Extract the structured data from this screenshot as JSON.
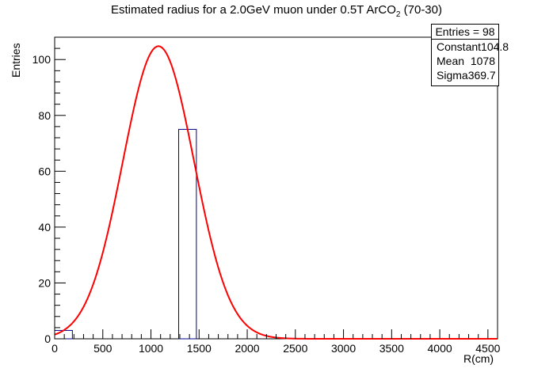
{
  "title": {
    "main": "Estimated radius for a 2.0GeV muon under 0.5T ArCO",
    "sub": "2",
    "tail": " (70-30)"
  },
  "axes": {
    "xlabel": "R(cm)",
    "ylabel": "Entries"
  },
  "stats": {
    "entries_label": "Entries = 98",
    "rows": [
      {
        "label": "Constant",
        "value": "104.8"
      },
      {
        "label": "Mean",
        "value": "1078"
      },
      {
        "label": "Sigma",
        "value": "369.7"
      }
    ]
  },
  "colors": {
    "histogram": "#00008b",
    "fit": "#ff0000",
    "axis": "#000000"
  },
  "chart_data": {
    "type": "bar",
    "title": "Estimated radius for a 2.0GeV muon under 0.5T ArCO2 (70-30)",
    "xlabel": "R(cm)",
    "ylabel": "Entries",
    "xlim": [
      0,
      4600
    ],
    "ylim": [
      0,
      108
    ],
    "xticks": [
      0,
      500,
      1000,
      1500,
      2000,
      2500,
      3000,
      3500,
      4000,
      4500
    ],
    "yticks": [
      0,
      20,
      40,
      60,
      80,
      100
    ],
    "bins": [
      {
        "x0": 0,
        "x1": 184,
        "count": 3
      },
      {
        "x0": 1288,
        "x1": 1472,
        "count": 75
      }
    ],
    "fit": {
      "function": "gaus",
      "constant": 104.8,
      "mean": 1078,
      "sigma": 369.7,
      "color": "#ff0000"
    },
    "legend": "top-right",
    "grid": false
  }
}
